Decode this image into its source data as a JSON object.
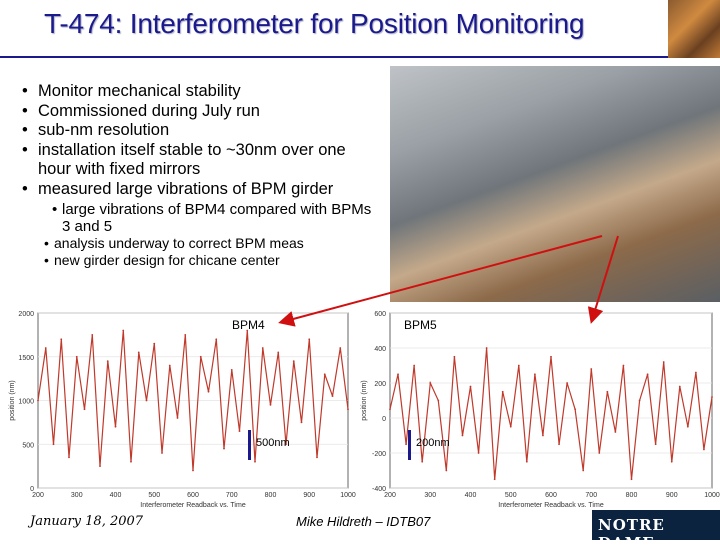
{
  "slide": {
    "title": "T-474: Interferometer for Position Monitoring",
    "bullets": [
      "Monitor mechanical stability",
      "Commissioned during July run",
      "sub-nm resolution",
      "installation itself stable to ~30nm over one hour with fixed mirrors",
      "measured large vibrations of BPM girder"
    ],
    "sub_bullets": [
      "large vibrations of BPM4 compared with BPMs 3 and 5",
      "analysis underway to correct BPM meas",
      "new girder design for chicane center"
    ],
    "footer_date": "January 18, 2007",
    "footer_author": "Mike Hildreth – IDTB07",
    "footer_logo": "NOTRE DAME"
  },
  "chart_data": [
    {
      "type": "line",
      "title": "BPM4",
      "xlabel": "Interferometer Readback vs. Time",
      "ylabel": "position (nm)",
      "ylim": [
        0,
        2000
      ],
      "xlim": [
        200,
        1000
      ],
      "xticks": [
        200,
        300,
        400,
        500,
        600,
        700,
        800,
        900,
        1000
      ],
      "yticks": [
        0,
        500,
        1000,
        1500,
        2000
      ],
      "scale_label": "500nm",
      "series": [
        {
          "color": "#c0392b",
          "x": [
            200,
            220,
            240,
            260,
            280,
            300,
            320,
            340,
            360,
            380,
            400,
            420,
            440,
            460,
            480,
            500,
            520,
            540,
            560,
            580,
            600,
            620,
            640,
            660,
            680,
            700,
            720,
            740,
            760,
            780,
            800,
            820,
            840,
            860,
            880,
            900,
            920,
            940,
            960,
            980,
            1000
          ],
          "y": [
            1000,
            1600,
            500,
            1700,
            350,
            1500,
            900,
            1750,
            250,
            1450,
            700,
            1800,
            300,
            1550,
            1000,
            1650,
            400,
            1400,
            800,
            1750,
            200,
            1500,
            1100,
            1700,
            450,
            1350,
            650,
            1800,
            300,
            1600,
            950,
            1550,
            500,
            1450,
            750,
            1700,
            350,
            1300,
            1050,
            1600,
            900
          ]
        }
      ]
    },
    {
      "type": "line",
      "title": "BPM5",
      "xlabel": "Interferometer Readback vs. Time",
      "ylabel": "position (nm)",
      "ylim": [
        -400,
        600
      ],
      "xlim": [
        200,
        1000
      ],
      "xticks": [
        200,
        300,
        400,
        500,
        600,
        700,
        800,
        900,
        1000
      ],
      "yticks": [
        -400,
        -200,
        0,
        200,
        400,
        600
      ],
      "scale_label": "200nm",
      "series": [
        {
          "color": "#c0392b",
          "x": [
            200,
            220,
            240,
            260,
            280,
            300,
            320,
            340,
            360,
            380,
            400,
            420,
            440,
            460,
            480,
            500,
            520,
            540,
            560,
            580,
            600,
            620,
            640,
            660,
            680,
            700,
            720,
            740,
            760,
            780,
            800,
            820,
            840,
            860,
            880,
            900,
            920,
            940,
            960,
            980,
            1000
          ],
          "y": [
            50,
            250,
            -150,
            300,
            -250,
            200,
            100,
            -300,
            350,
            -100,
            180,
            -200,
            400,
            -350,
            150,
            -50,
            300,
            -250,
            250,
            -100,
            350,
            -150,
            200,
            50,
            -300,
            280,
            -200,
            150,
            -80,
            300,
            -350,
            100,
            250,
            -150,
            320,
            -250,
            180,
            -50,
            260,
            -180,
            120
          ]
        }
      ]
    }
  ]
}
